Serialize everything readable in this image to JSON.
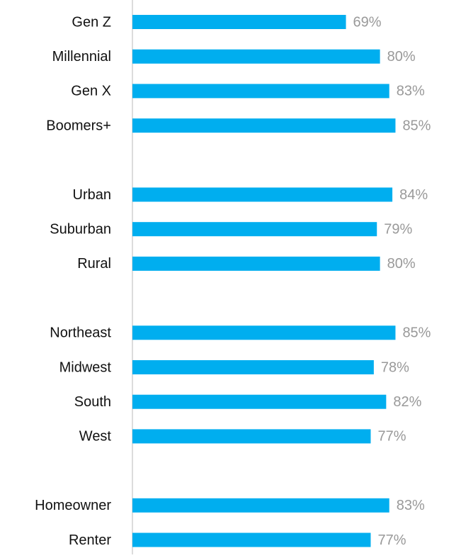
{
  "chart_data": {
    "type": "hbar",
    "categories": [
      "Gen Z",
      "Millennial",
      "Gen X",
      "Boomers+",
      null,
      "Urban",
      "Suburban",
      "Rural",
      null,
      "Northeast",
      "Midwest",
      "South",
      "West",
      null,
      "Homeowner",
      "Renter"
    ],
    "values": [
      69,
      80,
      83,
      85,
      null,
      84,
      79,
      80,
      null,
      85,
      78,
      82,
      77,
      null,
      83,
      77
    ],
    "value_labels": [
      "69%",
      "80%",
      "83%",
      "85%",
      null,
      "84%",
      "79%",
      "80%",
      null,
      "85%",
      "78%",
      "82%",
      "77%",
      null,
      "83%",
      "77%"
    ],
    "color": "#00aeef",
    "xlim": [
      0,
      100
    ]
  }
}
